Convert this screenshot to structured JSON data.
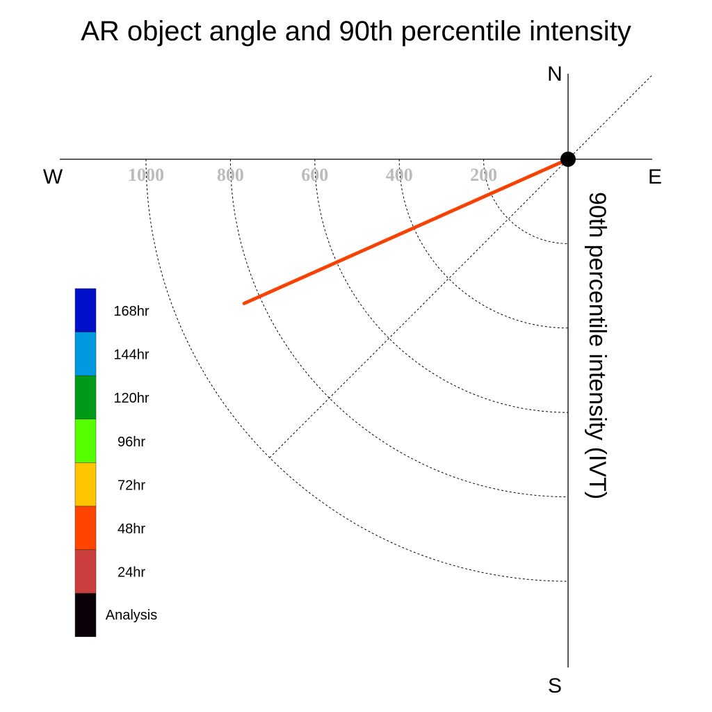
{
  "chart_data": {
    "type": "polar-quadrant",
    "title": "AR object angle and 90th percentile intensity",
    "ylabel": "90th percentile intensity (IVT)",
    "compass": {
      "north": "N",
      "south": "S",
      "east": "E",
      "west": "W"
    },
    "radial_ticks": [
      "1000",
      "800",
      "600",
      "400",
      "200"
    ],
    "radial_tick_values": [
      1000,
      800,
      600,
      400,
      200
    ],
    "rmax": 1000,
    "grid": true,
    "legend": {
      "placement": "left",
      "entries": [
        {
          "label": "168hr",
          "color": "#0010c8"
        },
        {
          "label": "144hr",
          "color": "#0099e0"
        },
        {
          "label": "120hr",
          "color": "#009a18"
        },
        {
          "label": "96hr",
          "color": "#55ff00"
        },
        {
          "label": "72hr",
          "color": "#ffc400"
        },
        {
          "label": "48hr",
          "color": "#ff4400"
        },
        {
          "label": "24hr",
          "color": "#cc3d3d"
        },
        {
          "label": "Analysis",
          "color": "#0a0008"
        }
      ]
    },
    "series": [
      {
        "name": "48hr",
        "color": "#ff4400",
        "angle_deg": 246,
        "intensity": 840
      }
    ]
  }
}
